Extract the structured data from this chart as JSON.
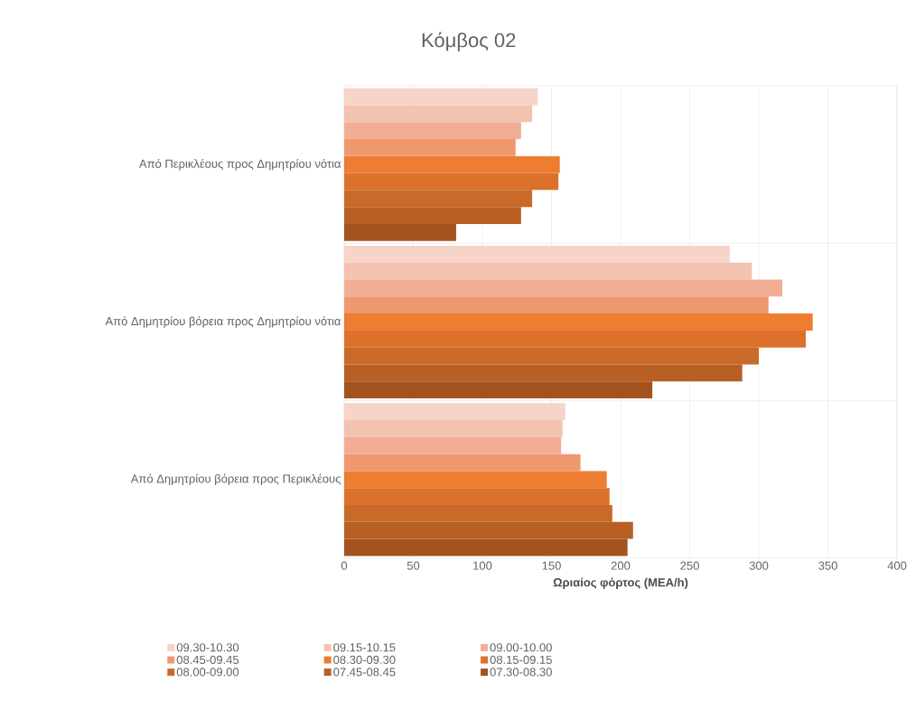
{
  "chart_data": {
    "type": "bar",
    "orientation": "horizontal",
    "title": "Κόμβος 02",
    "xlabel": "**Ωριαίος φόρτος (ΜΕΑ/h)**",
    "categories": [
      "Από Περικλέους προς Δημητρίου νότια",
      "Από Δημητρίου  βόρεια προς Δημητρίου νότια",
      "Από Δημητρίου  βόρεια προς Περικλέους"
    ],
    "series": [
      {
        "name": "09.30-10.30",
        "color": "#f7d4c8",
        "values": [
          140,
          279,
          160
        ]
      },
      {
        "name": "09.15-10.15",
        "color": "#f4c2b0",
        "values": [
          136,
          295,
          158
        ]
      },
      {
        "name": "09.00-10.00",
        "color": "#f2ae95",
        "values": [
          128,
          317,
          157
        ]
      },
      {
        "name": "08.45-09.45",
        "color": "#ef9870",
        "values": [
          124,
          307,
          171
        ]
      },
      {
        "name": "08.30-09.30",
        "color": "#ed7d31",
        "values": [
          156,
          339,
          190
        ]
      },
      {
        "name": "08.15-09.15",
        "color": "#dc712b",
        "values": [
          155,
          334,
          192
        ]
      },
      {
        "name": "08.00-09.00",
        "color": "#c96a2a",
        "values": [
          136,
          300,
          194
        ]
      },
      {
        "name": "07.45-08.45",
        "color": "#b85f24",
        "values": [
          128,
          288,
          209
        ]
      },
      {
        "name": "07.30-08.30",
        "color": "#a4531f",
        "values": [
          81,
          223,
          205
        ]
      }
    ],
    "xlim": [
      0,
      400
    ],
    "xticks": [
      0,
      50,
      100,
      150,
      200,
      250,
      300,
      350,
      400
    ],
    "grid": true,
    "legend": "bottom"
  }
}
